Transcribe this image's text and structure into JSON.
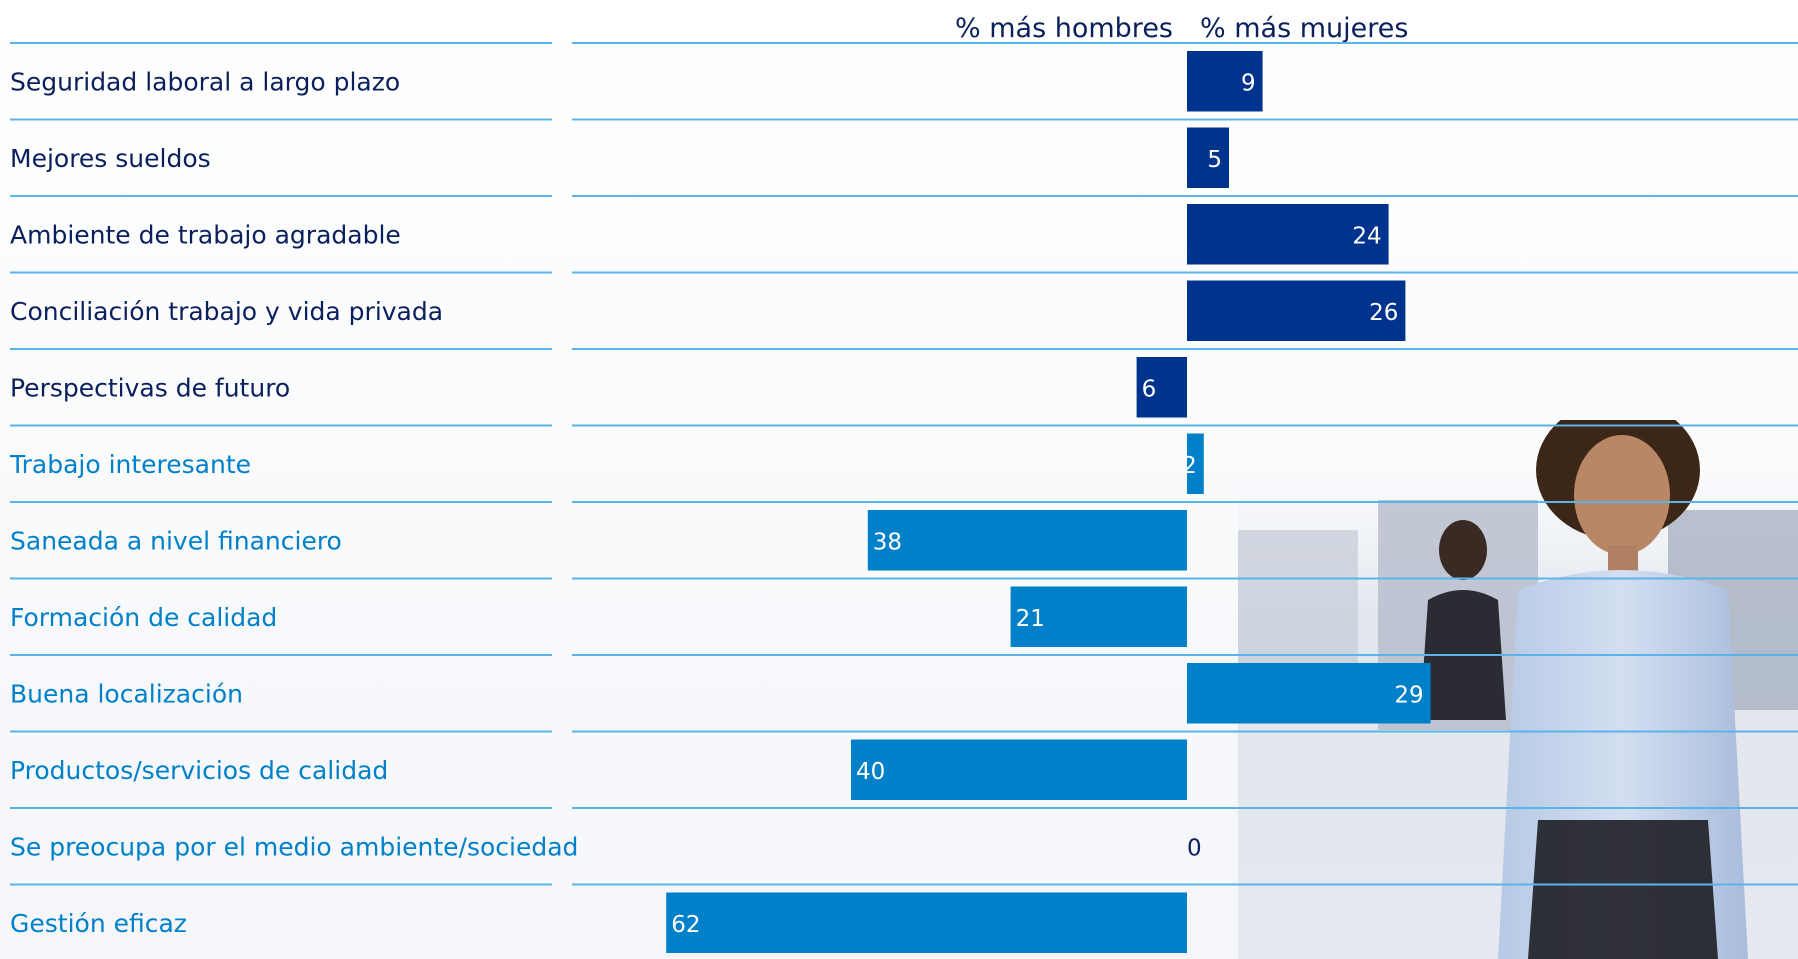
{
  "chart_data": {
    "type": "bar",
    "orientation": "horizontal-diverging",
    "header_left": "% más hombres",
    "header_right": "% más mujeres",
    "categories": [
      "Seguridad laboral a largo plazo",
      "Mejores sueldos",
      "Ambiente de trabajo agradable",
      "Conciliación trabajo y vida privada",
      "Perspectivas de futuro",
      "Trabajo interesante",
      "Saneada a nivel financiero",
      "Formación de calidad",
      "Buena localización",
      "Productos/servicios de calidad",
      "Se preocupa por el medio ambiente/sociedad",
      "Gestión eficaz"
    ],
    "values": [
      9,
      5,
      24,
      26,
      -6,
      2,
      -38,
      -21,
      29,
      -40,
      0,
      -62
    ],
    "data_labels": [
      "9",
      "5",
      "24",
      "26",
      "6",
      "2",
      "38",
      "21",
      "29",
      "40",
      "0",
      "62"
    ],
    "group_colors": [
      "#00338d",
      "#00338d",
      "#00338d",
      "#00338d",
      "#00338d",
      "#0080c9",
      "#0080c9",
      "#0080c9",
      "#0080c9",
      "#0080c9",
      "#0080c9",
      "#0080c9"
    ],
    "xlim": [
      -70,
      72
    ],
    "grid": "horizontal separators",
    "colors": {
      "dark_blue": "#00338d",
      "light_blue": "#0080c9",
      "separator": "#5ab4e8",
      "text_dark": "#0a1f5c"
    }
  }
}
